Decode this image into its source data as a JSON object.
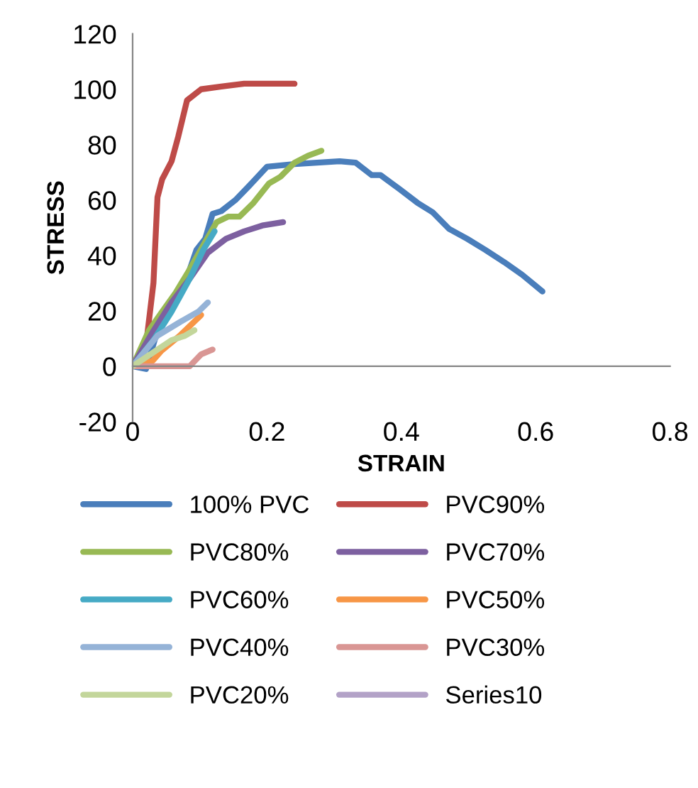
{
  "chart_data": {
    "type": "line",
    "xlabel": "STRAIN",
    "ylabel": "STRESS",
    "xlim": [
      0,
      0.8
    ],
    "xticks": [
      0,
      0.2,
      0.4,
      0.6,
      0.8
    ],
    "ylim": [
      -20,
      120
    ],
    "yticks": [
      -20,
      0,
      20,
      40,
      60,
      80,
      100,
      120
    ],
    "grid": false,
    "legend": "bottom",
    "marker": "none",
    "line_style": "solid",
    "series": [
      {
        "name": "100% PVC",
        "color": "#4a7ebb",
        "x": [
          0,
          0.02,
          0.037,
          0.078,
          0.095,
          0.108,
          0.119,
          0.132,
          0.153,
          0.173,
          0.2,
          0.241,
          0.308,
          0.332,
          0.356,
          0.369,
          0.397,
          0.424,
          0.447,
          0.471,
          0.498,
          0.525,
          0.553,
          0.58,
          0.61
        ],
        "values": [
          0,
          -1,
          12.8,
          30,
          42,
          46,
          55,
          56,
          60,
          65,
          72,
          73,
          74,
          73.5,
          69,
          69,
          64,
          59,
          55.5,
          49.6,
          46,
          42,
          37.6,
          33,
          27
        ]
      },
      {
        "name": "PVC90%",
        "color": "#be4b48",
        "x": [
          0,
          0.02,
          0.031,
          0.037,
          0.044,
          0.058,
          0.068,
          0.081,
          0.102,
          0.132,
          0.166,
          0.241
        ],
        "values": [
          0,
          7.7,
          30,
          61,
          67.5,
          74,
          83,
          96,
          100,
          101,
          102,
          102
        ]
      },
      {
        "name": "PVC80%",
        "color": "#98b954",
        "x": [
          0,
          0.024,
          0.044,
          0.064,
          0.085,
          0.105,
          0.125,
          0.142,
          0.159,
          0.18,
          0.203,
          0.22,
          0.241,
          0.261,
          0.281
        ],
        "values": [
          0,
          12.8,
          19.7,
          26.5,
          35,
          43.6,
          52,
          54,
          54,
          59,
          66,
          68.4,
          73.5,
          76,
          77.8
        ]
      },
      {
        "name": "PVC70%",
        "color": "#7d60a0",
        "x": [
          0,
          0.031,
          0.058,
          0.085,
          0.112,
          0.139,
          0.166,
          0.193,
          0.224
        ],
        "values": [
          0,
          12.8,
          23,
          31.6,
          41,
          46,
          48.7,
          50.8,
          52
        ]
      },
      {
        "name": "PVC60%",
        "color": "#46aac5",
        "x": [
          0,
          0.031,
          0.058,
          0.085,
          0.105,
          0.122
        ],
        "values": [
          0,
          9.4,
          19.7,
          31.6,
          41.9,
          48.7
        ]
      },
      {
        "name": "PVC50%",
        "color": "#f79646",
        "x": [
          0,
          0.03,
          0.043,
          0.07,
          0.102
        ],
        "values": [
          0,
          2,
          5.6,
          11,
          18.5
        ]
      },
      {
        "name": "PVC40%",
        "color": "#95b3d7",
        "x": [
          0,
          0.037,
          0.071,
          0.098,
          0.112
        ],
        "values": [
          0,
          11,
          16,
          19.7,
          23
        ]
      },
      {
        "name": "PVC30%",
        "color": "#d99694",
        "x": [
          0,
          0.024,
          0.085,
          0.102,
          0.119
        ],
        "values": [
          0,
          0,
          0,
          4.3,
          6
        ]
      },
      {
        "name": "PVC20%",
        "color": "#c3d69b",
        "x": [
          0,
          0.031,
          0.058,
          0.078,
          0.092
        ],
        "values": [
          0,
          5,
          9.4,
          11,
          13
        ]
      },
      {
        "name": "Series10",
        "color": "#b3a2c7"
      }
    ]
  }
}
